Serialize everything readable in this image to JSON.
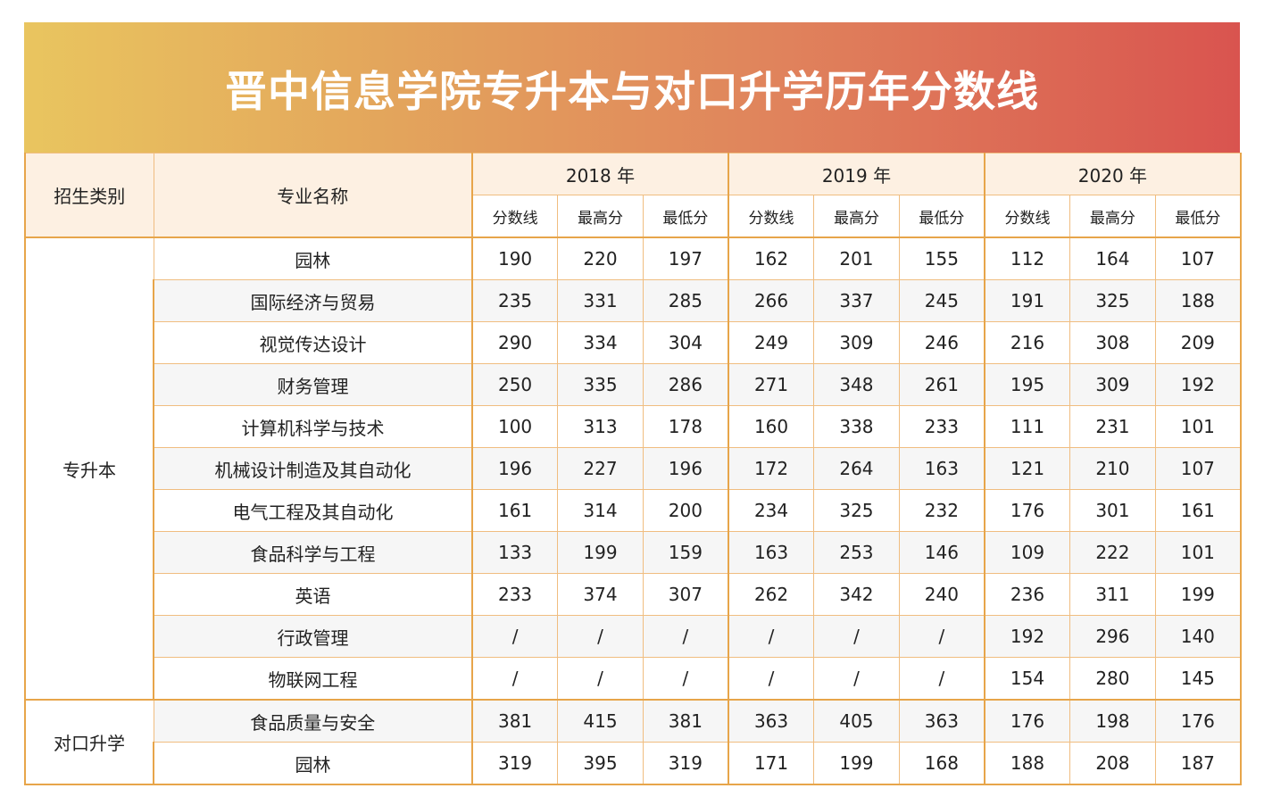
{
  "title": "晋中信息学院专升本与对口升学历年分数线",
  "headers": {
    "category": "招生类别",
    "major": "专业名称",
    "years": [
      "2018 年",
      "2019 年",
      "2020 年"
    ],
    "sub": [
      "分数线",
      "最高分",
      "最低分"
    ]
  },
  "groups": [
    {
      "category": "专升本",
      "rows": [
        {
          "major": "园林",
          "values": [
            "190",
            "220",
            "197",
            "162",
            "201",
            "155",
            "112",
            "164",
            "107"
          ]
        },
        {
          "major": "国际经济与贸易",
          "values": [
            "235",
            "331",
            "285",
            "266",
            "337",
            "245",
            "191",
            "325",
            "188"
          ]
        },
        {
          "major": "视觉传达设计",
          "values": [
            "290",
            "334",
            "304",
            "249",
            "309",
            "246",
            "216",
            "308",
            "209"
          ]
        },
        {
          "major": "财务管理",
          "values": [
            "250",
            "335",
            "286",
            "271",
            "348",
            "261",
            "195",
            "309",
            "192"
          ]
        },
        {
          "major": "计算机科学与技术",
          "values": [
            "100",
            "313",
            "178",
            "160",
            "338",
            "233",
            "111",
            "231",
            "101"
          ]
        },
        {
          "major": "机械设计制造及其自动化",
          "values": [
            "196",
            "227",
            "196",
            "172",
            "264",
            "163",
            "121",
            "210",
            "107"
          ]
        },
        {
          "major": "电气工程及其自动化",
          "values": [
            "161",
            "314",
            "200",
            "234",
            "325",
            "232",
            "176",
            "301",
            "161"
          ]
        },
        {
          "major": "食品科学与工程",
          "values": [
            "133",
            "199",
            "159",
            "163",
            "253",
            "146",
            "109",
            "222",
            "101"
          ]
        },
        {
          "major": "英语",
          "values": [
            "233",
            "374",
            "307",
            "262",
            "342",
            "240",
            "236",
            "311",
            "199"
          ]
        },
        {
          "major": "行政管理",
          "values": [
            "/",
            "/",
            "/",
            "/",
            "/",
            "/",
            "192",
            "296",
            "140"
          ]
        },
        {
          "major": "物联网工程",
          "values": [
            "/",
            "/",
            "/",
            "/",
            "/",
            "/",
            "154",
            "280",
            "145"
          ]
        }
      ]
    },
    {
      "category": "对口升学",
      "rows": [
        {
          "major": "食品质量与安全",
          "values": [
            "381",
            "415",
            "381",
            "363",
            "405",
            "363",
            "176",
            "198",
            "176"
          ]
        },
        {
          "major": "园林",
          "values": [
            "319",
            "395",
            "319",
            "171",
            "199",
            "168",
            "188",
            "208",
            "187"
          ]
        }
      ]
    }
  ],
  "colors": {
    "accent": "#e7a54a",
    "header_bg": "#fdf0e2",
    "stripe": "#f6f6f6"
  }
}
